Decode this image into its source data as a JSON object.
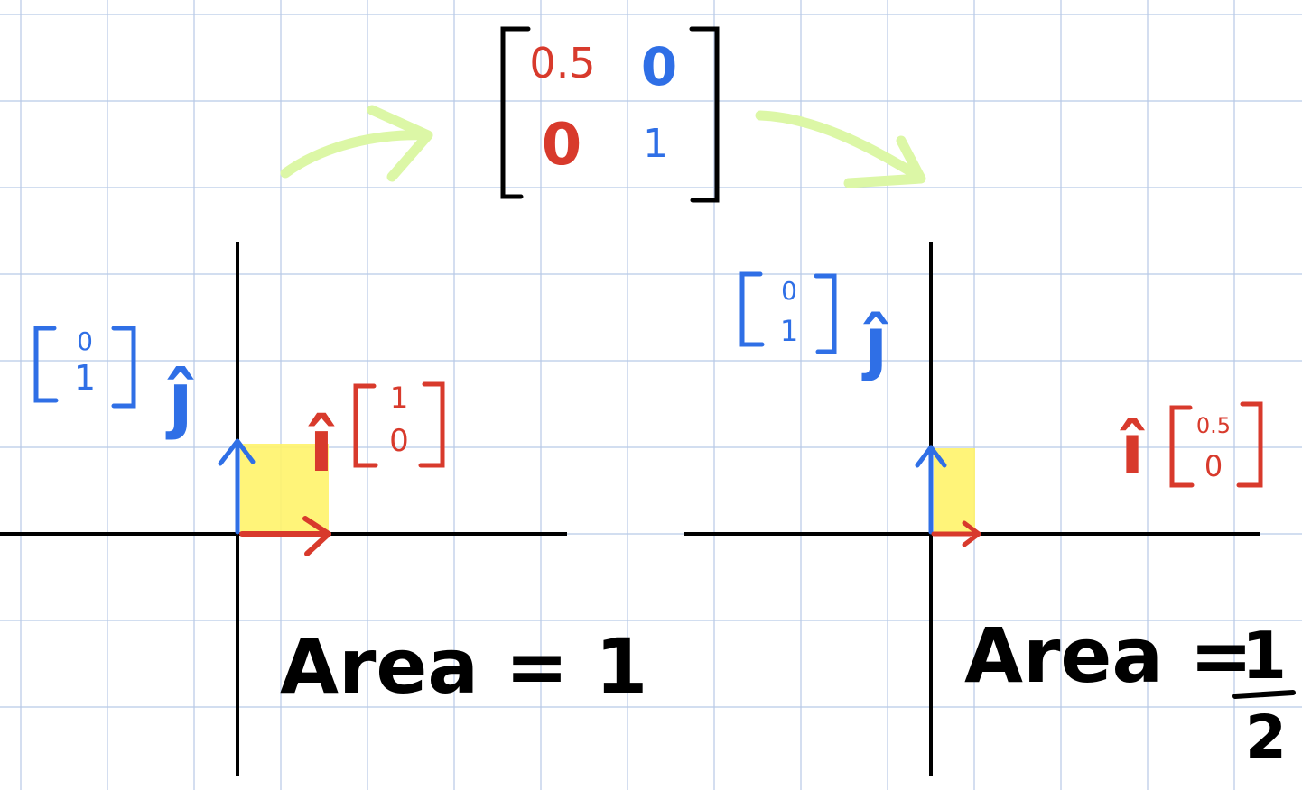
{
  "colors": {
    "grid": "#b7c9e6",
    "axis": "#000000",
    "i_hat": "#d83a2c",
    "j_hat": "#2f6fe6",
    "area_fill": "#fff36a",
    "arrow": "#dcf7a6",
    "text": "#000000"
  },
  "transform_matrix": {
    "row1": [
      "0.5",
      "0"
    ],
    "row2": [
      "0",
      "1"
    ]
  },
  "left": {
    "j_vector": [
      "0",
      "1"
    ],
    "i_vector": [
      "1",
      "0"
    ],
    "j_label": "ĵ",
    "i_label": "î",
    "area_text": "Area = 1"
  },
  "right": {
    "j_vector": [
      "0",
      "1"
    ],
    "i_vector": [
      "0.5",
      "0"
    ],
    "j_label": "ĵ",
    "i_label": "î",
    "area_text": "Area =",
    "area_fraction": {
      "numerator": "1",
      "denominator": "2"
    }
  },
  "icons": {
    "transform_arrows": "curved-arrow-icon",
    "vector_arrows": "arrow-icon"
  }
}
